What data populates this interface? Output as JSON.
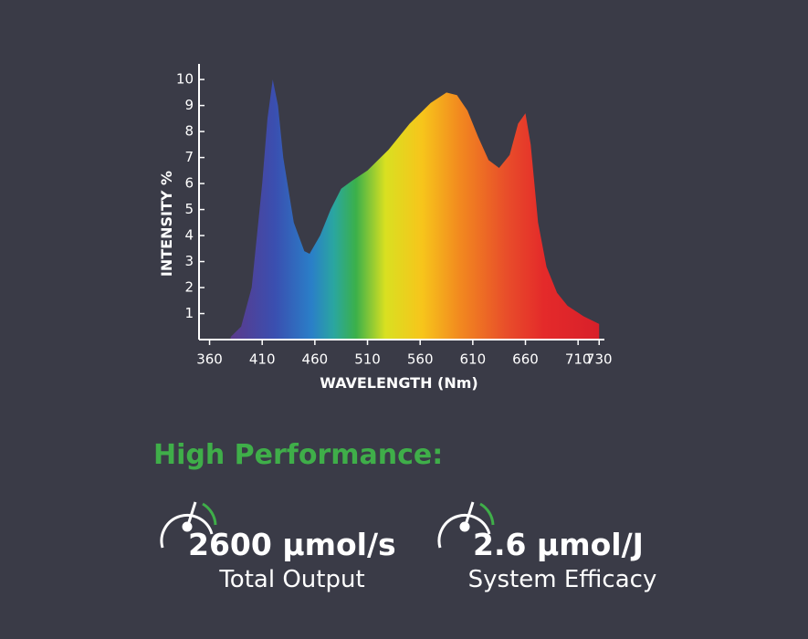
{
  "chart_data": {
    "type": "area",
    "x_label": "WAVELENGTH (Nm)",
    "y_label": "INTENSITY %",
    "x": [
      380,
      390,
      400,
      410,
      415,
      420,
      425,
      430,
      440,
      450,
      455,
      465,
      475,
      485,
      495,
      510,
      530,
      550,
      570,
      585,
      595,
      605,
      615,
      625,
      635,
      645,
      653,
      660,
      665,
      672,
      680,
      690,
      700,
      715,
      730
    ],
    "values": [
      0.1,
      0.5,
      2,
      6,
      8.5,
      10,
      9,
      7,
      4.5,
      3.4,
      3.3,
      4,
      5,
      5.8,
      6.1,
      6.5,
      7.3,
      8.3,
      9.1,
      9.5,
      9.4,
      8.8,
      7.8,
      6.9,
      6.6,
      7.1,
      8.3,
      8.7,
      7.5,
      4.5,
      2.8,
      1.8,
      1.3,
      0.9,
      0.6
    ],
    "xlim": [
      350,
      735
    ],
    "ylim": [
      0,
      10.6
    ],
    "xticks": [
      360,
      410,
      460,
      510,
      560,
      610,
      660,
      710,
      730
    ],
    "yticks": [
      1,
      2,
      3,
      4,
      5,
      6,
      7,
      8,
      9,
      10
    ]
  },
  "highlight": {
    "heading": "High Performance:",
    "metrics": [
      {
        "value": "2600 µmol/s",
        "label": "Total Output"
      },
      {
        "value": "2.6 µmol/J",
        "label": "System Efficacy"
      }
    ]
  }
}
